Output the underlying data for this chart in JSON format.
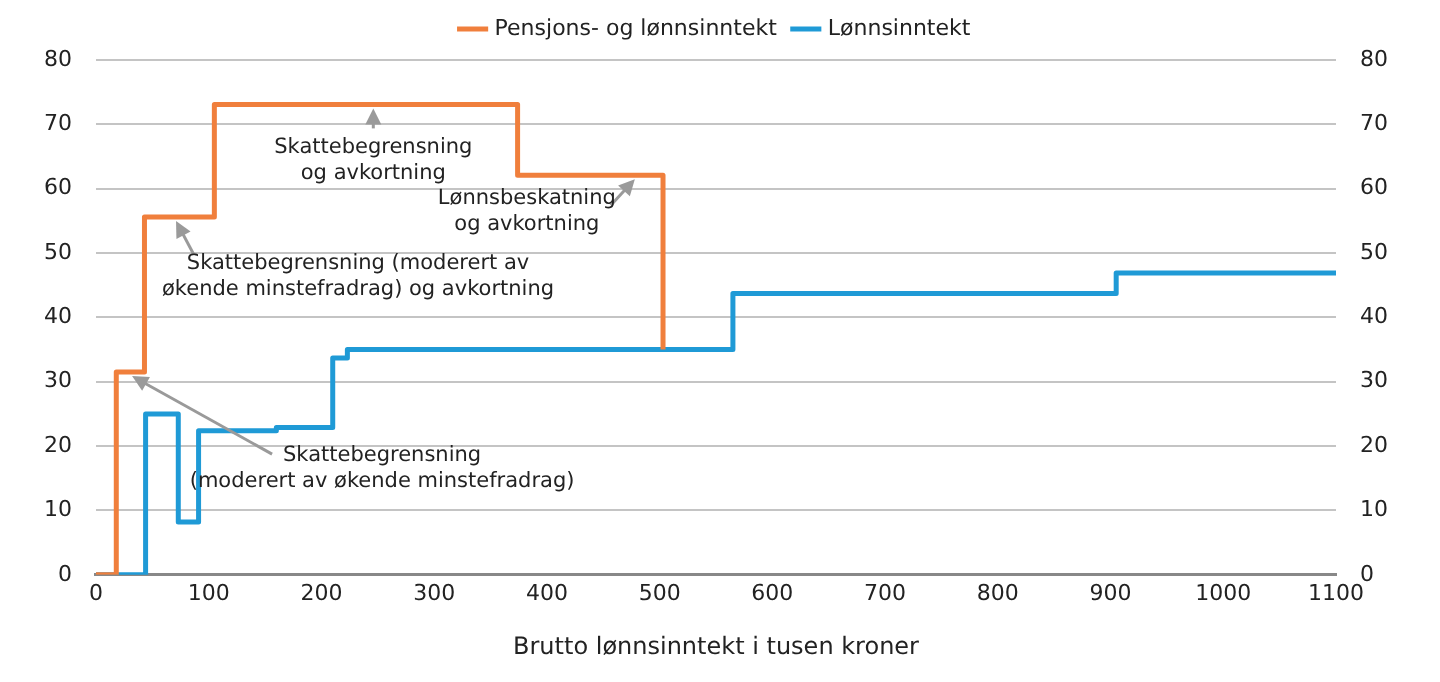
{
  "chart_data": {
    "type": "step",
    "xlabel": "Brutto lønnsinntekt i tusen kroner",
    "series": [
      {
        "name": "Pensjons- og lønnsinntekt",
        "color": "#f07f3c",
        "x": [
          0,
          18,
          43,
          105,
          374,
          503
        ],
        "values": [
          0,
          31.5,
          55.6,
          73.1,
          62.1,
          35
        ]
      },
      {
        "name": "Lønnsinntekt",
        "color": "#1f9ad6",
        "x": [
          0,
          44,
          73,
          91,
          160,
          210,
          223,
          565,
          905,
          1100
        ],
        "values": [
          0,
          25,
          8.2,
          22.4,
          22.9,
          33.7,
          35,
          43.7,
          46.9,
          46.9
        ]
      }
    ],
    "xlim": [
      0,
      1100
    ],
    "xticks": [
      0,
      100,
      200,
      300,
      400,
      500,
      600,
      700,
      800,
      900,
      1000,
      1100
    ],
    "ylim": [
      0,
      80
    ],
    "yticks": [
      0,
      10,
      20,
      30,
      40,
      50,
      60,
      70,
      80
    ],
    "y2lim": [
      0,
      80
    ],
    "y2ticks": [
      0,
      10,
      20,
      30,
      40,
      50,
      60,
      70,
      80
    ],
    "annotations": [
      {
        "text": "Skattebegrensning\nog avkortning",
        "x": 246,
        "y": 73.1
      },
      {
        "text": "Lønnsbeskatning\nog avkortning",
        "x": 478,
        "y": 62.1
      },
      {
        "text": "Skattebegrensning (moderert av\nøkende minstefradrag) og avkortning",
        "x": 71,
        "y": 55.6
      },
      {
        "text": "Skattebegrensning\n(moderert av økende minstefradrag)",
        "x": 32,
        "y": 31.5
      }
    ],
    "grid": "y",
    "legend": "top",
    "line_style": "solid",
    "marker": "none"
  }
}
